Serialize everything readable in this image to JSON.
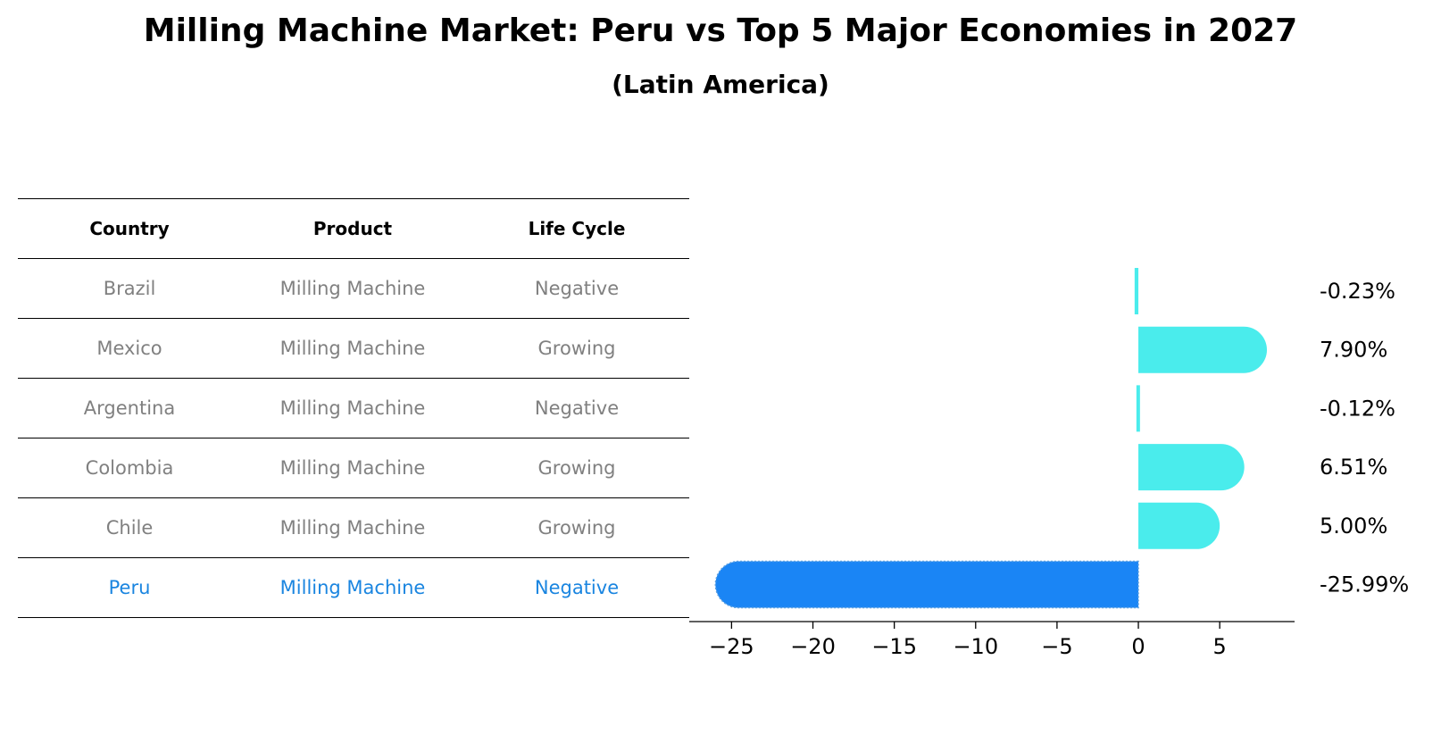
{
  "header": {
    "title": "Milling Machine Market: Peru vs Top 5 Major Economies in 2027",
    "subtitle": "(Latin America)"
  },
  "table": {
    "columns": [
      "Country",
      "Product",
      "Life Cycle"
    ],
    "rows": [
      {
        "country": "Brazil",
        "product": "Milling Machine",
        "cycle": "Negative"
      },
      {
        "country": "Mexico",
        "product": "Milling Machine",
        "cycle": "Growing"
      },
      {
        "country": "Argentina",
        "product": "Milling Machine",
        "cycle": "Negative"
      },
      {
        "country": "Colombia",
        "product": "Milling Machine",
        "cycle": "Growing"
      },
      {
        "country": "Chile",
        "product": "Milling Machine",
        "cycle": "Growing"
      },
      {
        "country": "Peru",
        "product": "Milling Machine",
        "cycle": "Negative"
      }
    ],
    "highlight_row": "Peru"
  },
  "chart_data": {
    "type": "bar",
    "orientation": "horizontal",
    "categories": [
      "Brazil",
      "Mexico",
      "Argentina",
      "Colombia",
      "Chile",
      "Peru"
    ],
    "values": [
      -0.23,
      7.9,
      -0.12,
      6.51,
      5.0,
      -25.99
    ],
    "value_labels": [
      "-0.23%",
      "7.90%",
      "-0.12%",
      "6.51%",
      "5.00%",
      "-25.99%"
    ],
    "xlim": [
      -27.6,
      9.6
    ],
    "xticks": [
      -25,
      -20,
      -15,
      -10,
      -5,
      0,
      5
    ],
    "xtick_labels": [
      "−25",
      "−20",
      "−15",
      "−10",
      "−5",
      "0",
      "5"
    ],
    "highlight": "Peru",
    "colors": {
      "default": "#4aecec",
      "highlight": "#1a85f5",
      "highlight_text": "#1a85e0",
      "muted_text": "#808080"
    },
    "grid": false
  }
}
